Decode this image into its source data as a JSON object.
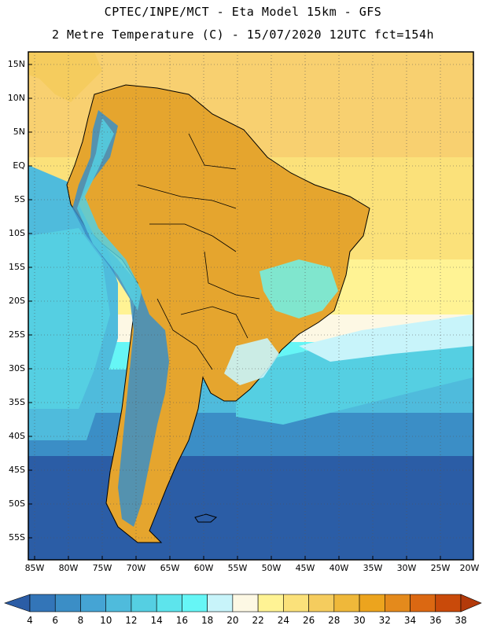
{
  "header": {
    "line1": "CPTEC/INPE/MCT -  Eta Model 15km - GFS",
    "line2": "2 Metre Temperature (C) - 15/07/2020 12UTC fct=154h"
  },
  "map": {
    "lat_labels": [
      "15N",
      "10N",
      "5N",
      "EQ",
      "5S",
      "10S",
      "15S",
      "20S",
      "25S",
      "30S",
      "35S",
      "40S",
      "45S",
      "50S",
      "55S"
    ],
    "lon_labels": [
      "85W",
      "80W",
      "75W",
      "70W",
      "65W",
      "60W",
      "55W",
      "50W",
      "45W",
      "40W",
      "35W",
      "30W",
      "25W",
      "20W"
    ],
    "land_color": "#e5a52e",
    "frame_color": "#000000",
    "grid_color": "#555555"
  },
  "colorbar": {
    "labels": [
      "4",
      "6",
      "8",
      "10",
      "12",
      "14",
      "16",
      "18",
      "20",
      "22",
      "24",
      "26",
      "28",
      "30",
      "32",
      "34",
      "36",
      "38"
    ],
    "colors": [
      "#2b5da6",
      "#3375b8",
      "#3b8ec6",
      "#45a4d4",
      "#4fbbdc",
      "#55cfe2",
      "#5de4ec",
      "#66f6f6",
      "#c8f4fa",
      "#fdf8e4",
      "#fff394",
      "#fbe17a",
      "#f5cc5e",
      "#efb83a",
      "#eca41e",
      "#e48a1c",
      "#db6812",
      "#c94a0a",
      "#b33a0a"
    ]
  }
}
